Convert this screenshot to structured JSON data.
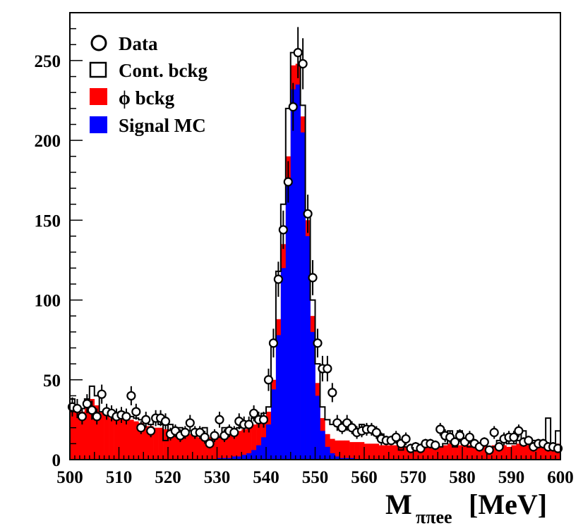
{
  "chart_data": {
    "type": "histogram",
    "xlabel_main": "M",
    "xlabel_sub": "ππee",
    "xlabel_unit": "[MeV]",
    "xlim": [
      500,
      600
    ],
    "ylim": [
      0,
      280
    ],
    "x_ticks": [
      500,
      510,
      520,
      530,
      540,
      550,
      560,
      570,
      580,
      590,
      600
    ],
    "y_ticks": [
      0,
      50,
      100,
      150,
      200,
      250
    ],
    "bin_width": 1,
    "bin_start": 500,
    "colors": {
      "signal": "#0000ff",
      "phi_bckg": "#ff0000",
      "cont_bckg": "#000000",
      "data": "#000000"
    },
    "legend": [
      {
        "label": "Data",
        "symbol": "circle"
      },
      {
        "label": "Cont. bckg",
        "symbol": "open-box"
      },
      {
        "label": "ϕ bckg",
        "symbol": "red-box"
      },
      {
        "label": "Signal MC",
        "symbol": "blue-box"
      }
    ],
    "series": [
      {
        "name": "Signal MC",
        "values": [
          0,
          0,
          0,
          0,
          0,
          0,
          0,
          0,
          0,
          0,
          0,
          0,
          0,
          0,
          0,
          0,
          0,
          0,
          0,
          0,
          0,
          0,
          0,
          0,
          0,
          0,
          0,
          0,
          0,
          0,
          1,
          1,
          1,
          2,
          2,
          3,
          4,
          6,
          9,
          14,
          22,
          44,
          78,
          120,
          175,
          232,
          235,
          205,
          140,
          80,
          40,
          18,
          8,
          4,
          2,
          1,
          1,
          1,
          0,
          0,
          0,
          0,
          0,
          0,
          0,
          0,
          0,
          0,
          0,
          0,
          0,
          0,
          0,
          0,
          0,
          0,
          0,
          0,
          0,
          0,
          0,
          0,
          0,
          0,
          0,
          0,
          0,
          0,
          0,
          0,
          0,
          0,
          0,
          0,
          0,
          0,
          0,
          0,
          0,
          0
        ]
      },
      {
        "name": "ϕ bckg",
        "values": [
          35,
          33,
          30,
          35,
          38,
          34,
          30,
          28,
          26,
          27,
          28,
          26,
          25,
          24,
          23,
          21,
          21,
          20,
          20,
          19,
          19,
          18,
          17,
          17,
          16,
          15,
          14,
          14,
          14,
          13,
          15,
          15,
          16,
          17,
          18,
          19,
          20,
          22,
          24,
          27,
          30,
          50,
          88,
          135,
          190,
          247,
          248,
          215,
          150,
          90,
          48,
          26,
          16,
          13,
          12,
          12,
          12,
          11,
          11,
          11,
          10,
          10,
          10,
          9,
          9,
          9,
          9,
          9,
          8,
          8,
          8,
          8,
          9,
          9,
          9,
          8,
          9,
          10,
          8,
          9,
          9,
          9,
          10,
          9,
          9,
          8,
          9,
          10,
          9,
          8,
          9,
          10,
          10,
          9,
          9,
          10,
          9,
          10,
          9,
          10
        ]
      },
      {
        "name": "Cont. bckg",
        "values": [
          38,
          32,
          32,
          38,
          46,
          40,
          30,
          30,
          28,
          29,
          30,
          28,
          27,
          26,
          25,
          24,
          22,
          24,
          22,
          12,
          22,
          18,
          20,
          16,
          18,
          15,
          16,
          20,
          12,
          13,
          14,
          20,
          18,
          17,
          20,
          22,
          24,
          26,
          25,
          29,
          33,
          72,
          118,
          160,
          220,
          255,
          253,
          222,
          155,
          100,
          60,
          33,
          25,
          22,
          21,
          18,
          20,
          18,
          18,
          22,
          17,
          20,
          15,
          16,
          12,
          12,
          14,
          6,
          8,
          6,
          10,
          8,
          12,
          8,
          10,
          8,
          10,
          18,
          8,
          18,
          12,
          8,
          8,
          9,
          10,
          5,
          8,
          12,
          12,
          10,
          10,
          12,
          18,
          10,
          12,
          10,
          8,
          26,
          10,
          18
        ]
      }
    ],
    "data": {
      "x": [
        500.5,
        501.5,
        502.5,
        503.5,
        504.5,
        505.5,
        506.5,
        507.5,
        508.5,
        509.5,
        510.5,
        511.5,
        512.5,
        513.5,
        514.5,
        515.5,
        516.5,
        517.5,
        518.5,
        519.5,
        520.5,
        521.5,
        522.5,
        523.5,
        524.5,
        525.5,
        526.5,
        527.5,
        528.5,
        529.5,
        530.5,
        531.5,
        532.5,
        533.5,
        534.5,
        535.5,
        536.5,
        537.5,
        538.5,
        539.5,
        540.5,
        541.5,
        542.5,
        543.5,
        544.5,
        545.5,
        546.5,
        547.5,
        548.5,
        549.5,
        550.5,
        551.5,
        552.5,
        553.5,
        554.5,
        555.5,
        556.5,
        557.5,
        558.5,
        559.5,
        560.5,
        561.5,
        562.5,
        563.5,
        564.5,
        565.5,
        566.5,
        567.5,
        568.5,
        569.5,
        570.5,
        571.5,
        572.5,
        573.5,
        574.5,
        575.5,
        576.5,
        577.5,
        578.5,
        579.5,
        580.5,
        581.5,
        582.5,
        583.5,
        584.5,
        585.5,
        586.5,
        587.5,
        588.5,
        589.5,
        590.5,
        591.5,
        592.5,
        593.5,
        594.5,
        595.5,
        596.5,
        597.5,
        598.5,
        599.5
      ],
      "y": [
        33,
        32,
        27,
        35,
        31,
        27,
        41,
        30,
        29,
        27,
        28,
        27,
        40,
        30,
        20,
        25,
        18,
        26,
        26,
        24,
        16,
        18,
        15,
        17,
        23,
        17,
        17,
        14,
        10,
        15,
        25,
        15,
        18,
        17,
        24,
        22,
        22,
        29,
        25,
        25,
        50,
        73,
        113,
        144,
        174,
        221,
        255,
        248,
        154,
        114,
        73,
        57,
        57,
        42,
        23,
        20,
        23,
        20,
        17,
        18,
        19,
        19,
        17,
        13,
        12,
        12,
        14,
        10,
        13,
        7,
        8,
        7,
        10,
        10,
        9,
        19,
        15,
        14,
        11,
        15,
        11,
        14,
        10,
        8,
        11,
        6,
        17,
        8,
        13,
        14,
        14,
        18,
        11,
        12,
        8,
        10,
        10,
        8,
        8,
        7
      ],
      "errors": [
        6,
        6,
        5,
        6,
        6,
        5,
        6,
        5,
        5,
        5,
        5,
        5,
        6,
        5,
        4,
        5,
        4,
        5,
        5,
        5,
        4,
        4,
        4,
        4,
        5,
        4,
        4,
        4,
        3,
        4,
        5,
        4,
        4,
        4,
        5,
        5,
        5,
        5,
        5,
        5,
        7,
        9,
        11,
        12,
        13,
        15,
        16,
        16,
        12,
        11,
        9,
        8,
        8,
        6,
        5,
        4,
        5,
        4,
        4,
        4,
        4,
        4,
        4,
        4,
        3,
        3,
        4,
        3,
        4,
        3,
        3,
        3,
        3,
        3,
        3,
        4,
        4,
        4,
        3,
        4,
        3,
        4,
        3,
        3,
        3,
        2,
        4,
        3,
        4,
        4,
        4,
        4,
        3,
        3,
        3,
        3,
        3,
        3,
        3,
        3
      ]
    }
  }
}
